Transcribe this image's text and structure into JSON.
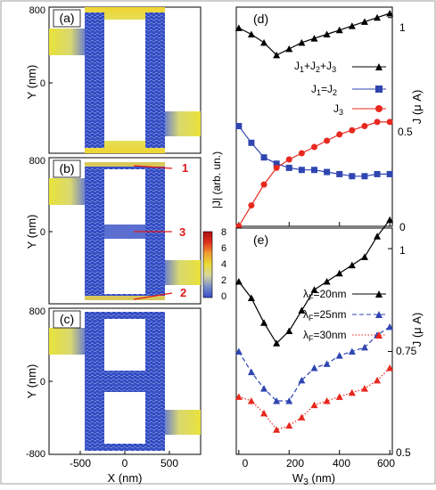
{
  "colors": {
    "blue": "#2f45b0",
    "black": "#000000",
    "red": "#e8281e",
    "annot_red": "#e21b1b",
    "current_blue": "#3752c9",
    "current_yellow": "#e9e23a"
  },
  "left_panels": {
    "y_axis_label": "Y (nm)",
    "x_axis_label": "X (nm)",
    "x_ticks": [
      "-500",
      "0",
      "500"
    ],
    "panels": [
      {
        "label": "(a)",
        "y_ticks": [
          "800",
          "0"
        ]
      },
      {
        "label": "(b)",
        "y_ticks": [
          "800",
          "0"
        ],
        "annotations": [
          "1",
          "3",
          "2"
        ]
      },
      {
        "label": "(c)",
        "y_ticks": [
          "800",
          "0",
          "-800"
        ]
      }
    ]
  },
  "colorbar": {
    "label": "|J| (arb. un.)",
    "ticks": [
      "8",
      "6",
      "4",
      "2",
      "0"
    ],
    "stops": [
      "#3a4bc8",
      "#7c90c8",
      "#d8d6a0",
      "#e8dc38",
      "#f0a030",
      "#e23020",
      "#b01010"
    ]
  },
  "chart_data": [
    {
      "type": "line",
      "panel": "(d)",
      "xlabel": "W3 (nm)",
      "ylabel": "J (μ A)",
      "xlim": [
        -10,
        610
      ],
      "ylim": [
        0,
        1.05
      ],
      "x_ticks": [
        "0",
        "200",
        "400",
        "600"
      ],
      "y_ticks": [
        "0",
        "0.5",
        "1"
      ],
      "x": [
        0,
        50,
        100,
        150,
        200,
        250,
        300,
        350,
        400,
        450,
        500,
        550,
        600
      ],
      "series": [
        {
          "name": "J1+J2+J3",
          "marker": "triangle",
          "color": "#000000",
          "values": [
            0.95,
            0.92,
            0.88,
            0.82,
            0.85,
            0.88,
            0.9,
            0.92,
            0.94,
            0.96,
            0.98,
            1.0,
            1.02
          ]
        },
        {
          "name": "J1=J2",
          "marker": "square",
          "color": "#2f45b0",
          "values": [
            0.48,
            0.4,
            0.33,
            0.3,
            0.28,
            0.27,
            0.27,
            0.26,
            0.25,
            0.24,
            0.24,
            0.25,
            0.25
          ]
        },
        {
          "name": "J3",
          "marker": "circle",
          "color": "#e8281e",
          "values": [
            0.0,
            0.1,
            0.2,
            0.28,
            0.32,
            0.35,
            0.38,
            0.41,
            0.44,
            0.46,
            0.48,
            0.5,
            0.5
          ]
        }
      ]
    },
    {
      "type": "line",
      "panel": "(e)",
      "xlabel": "W3 (nm)",
      "ylabel": "J (μ A)",
      "xlim": [
        -10,
        610
      ],
      "ylim": [
        0.5,
        1.05
      ],
      "x_ticks": [
        "0",
        "200",
        "400",
        "600"
      ],
      "y_ticks": [
        "0.5",
        "0.75",
        "1"
      ],
      "x": [
        0,
        50,
        100,
        150,
        200,
        250,
        300,
        350,
        400,
        450,
        500,
        550,
        600
      ],
      "series": [
        {
          "name": "λF=20nm",
          "marker": "triangle",
          "color": "#000000",
          "values": [
            0.92,
            0.88,
            0.82,
            0.77,
            0.8,
            0.85,
            0.9,
            0.92,
            0.94,
            0.96,
            0.98,
            1.03,
            1.07
          ]
        },
        {
          "name": "λF=25nm",
          "marker": "triangle",
          "color": "#2f45b0",
          "dash": "dashed",
          "values": [
            0.75,
            0.7,
            0.66,
            0.63,
            0.63,
            0.68,
            0.71,
            0.72,
            0.74,
            0.75,
            0.76,
            0.79,
            0.81
          ]
        },
        {
          "name": "λF=30nm",
          "marker": "triangle",
          "color": "#e8281e",
          "dash": "dotted",
          "values": [
            0.64,
            0.63,
            0.6,
            0.56,
            0.57,
            0.59,
            0.62,
            0.63,
            0.64,
            0.65,
            0.66,
            0.68,
            0.71
          ]
        }
      ]
    }
  ]
}
